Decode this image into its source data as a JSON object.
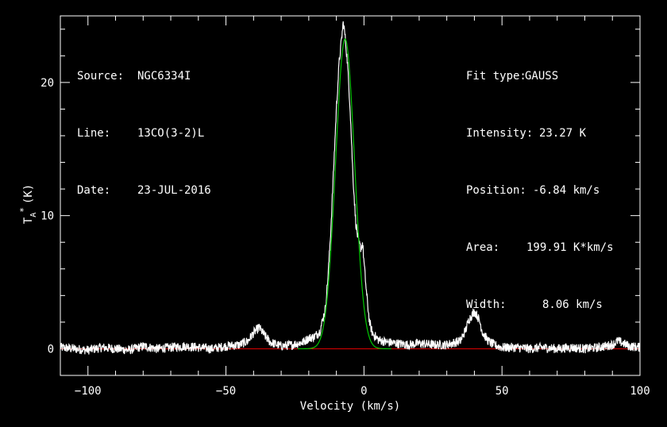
{
  "chart_data": {
    "type": "line",
    "xlabel": "Velocity (km/s)",
    "ylabel_main": "T",
    "ylabel_sub": "A",
    "ylabel_sup": "*",
    "ylabel_unit": "(K)",
    "xlim": [
      -110,
      100
    ],
    "ylim": [
      -2,
      25
    ],
    "xticks_major": [
      -100,
      -50,
      0,
      50,
      100
    ],
    "xticks_minor_step": 10,
    "yticks_major": [
      0,
      10,
      20
    ],
    "yticks_minor_step": 2,
    "baseline": 0,
    "info_left": [
      {
        "key": "Source:",
        "value": "NGC6334I"
      },
      {
        "key": "Line:",
        "value": "13CO(3-2)L"
      },
      {
        "key": "Date:",
        "value": "23-JUL-2016"
      }
    ],
    "info_right": [
      {
        "key": "Fit type:",
        "value": "GAUSS"
      },
      {
        "key": "Intensity:",
        "value": "23.27 K"
      },
      {
        "key": "Position:",
        "value": "-6.84 km/s"
      },
      {
        "key": "Area:",
        "value": "199.91 K*km/s"
      },
      {
        "key": "Width:",
        "value": "8.06 km/s"
      }
    ],
    "gaussian_fit": {
      "amplitude": 23.27,
      "center": -6.84,
      "fwhm": 8.06
    },
    "spectrum": {
      "name": "observed",
      "points": [
        [
          -110,
          0.1
        ],
        [
          -105,
          0.0
        ],
        [
          -100,
          -0.1
        ],
        [
          -95,
          0.1
        ],
        [
          -90,
          0.0
        ],
        [
          -85,
          -0.1
        ],
        [
          -80,
          0.2
        ],
        [
          -75,
          0.0
        ],
        [
          -70,
          0.1
        ],
        [
          -65,
          0.2
        ],
        [
          -60,
          0.1
        ],
        [
          -55,
          0.0
        ],
        [
          -50,
          0.2
        ],
        [
          -45,
          0.3
        ],
        [
          -42,
          0.6
        ],
        [
          -40,
          1.2
        ],
        [
          -38,
          1.6
        ],
        [
          -36,
          1.0
        ],
        [
          -34,
          0.5
        ],
        [
          -30,
          0.2
        ],
        [
          -26,
          0.3
        ],
        [
          -22,
          0.5
        ],
        [
          -20,
          0.8
        ],
        [
          -18,
          0.9
        ],
        [
          -16,
          1.3
        ],
        [
          -14,
          3.0
        ],
        [
          -13,
          5.5
        ],
        [
          -12,
          9.0
        ],
        [
          -11,
          13.5
        ],
        [
          -10,
          18.0
        ],
        [
          -9,
          21.5
        ],
        [
          -8,
          23.5
        ],
        [
          -7.5,
          24.5
        ],
        [
          -7,
          23.8
        ],
        [
          -6,
          21.5
        ],
        [
          -5,
          18.0
        ],
        [
          -4,
          13.0
        ],
        [
          -3,
          9.5
        ],
        [
          -2,
          8.0
        ],
        [
          -1,
          7.5
        ],
        [
          -0.5,
          8.0
        ],
        [
          0,
          6.5
        ],
        [
          1,
          4.0
        ],
        [
          2,
          2.0
        ],
        [
          3,
          1.2
        ],
        [
          5,
          0.7
        ],
        [
          8,
          0.5
        ],
        [
          12,
          0.4
        ],
        [
          16,
          0.3
        ],
        [
          20,
          0.4
        ],
        [
          25,
          0.3
        ],
        [
          30,
          0.3
        ],
        [
          35,
          0.6
        ],
        [
          37,
          1.5
        ],
        [
          38,
          2.2
        ],
        [
          39,
          2.5
        ],
        [
          40,
          2.8
        ],
        [
          41,
          2.5
        ],
        [
          42,
          2.0
        ],
        [
          43,
          1.2
        ],
        [
          45,
          0.6
        ],
        [
          47,
          0.3
        ],
        [
          50,
          0.1
        ],
        [
          55,
          0.1
        ],
        [
          60,
          0.0
        ],
        [
          65,
          0.1
        ],
        [
          70,
          0.0
        ],
        [
          75,
          0.1
        ],
        [
          80,
          0.0
        ],
        [
          85,
          0.1
        ],
        [
          90,
          0.3
        ],
        [
          92,
          0.6
        ],
        [
          94,
          0.4
        ],
        [
          96,
          0.2
        ],
        [
          100,
          0.1
        ]
      ]
    }
  },
  "colors": {
    "background": "#000000",
    "axes": "#ffffff",
    "spectrum": "#ffffff",
    "fit": "#00c800",
    "baseline": "#dd0000"
  }
}
